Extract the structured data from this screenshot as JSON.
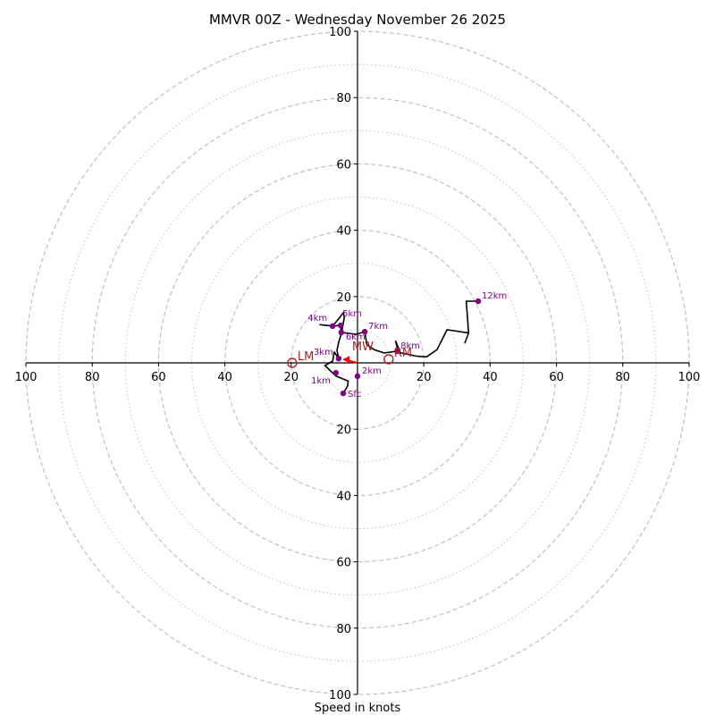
{
  "chart_data": {
    "type": "hodograph",
    "title": "MMVR 00Z - Wednesday November 26 2025",
    "xlabel": "Speed in knots",
    "rmax": 100,
    "ring_major": [
      20,
      40,
      60,
      80,
      100
    ],
    "ring_minor": [
      10,
      30,
      50,
      70,
      90
    ],
    "tick_labels": {
      "x_left": [
        "100",
        "80",
        "60",
        "40",
        "20"
      ],
      "x_right": [
        "20",
        "40",
        "60",
        "80",
        "100"
      ],
      "y_top": [
        "20",
        "40",
        "60",
        "80",
        "100"
      ],
      "y_bottom": [
        "20",
        "40",
        "60",
        "80",
        "100"
      ]
    },
    "trace_color": "#000000",
    "trace": [
      [
        -4.3,
        -9.2
      ],
      [
        -3.0,
        -7.0
      ],
      [
        -2.8,
        -5.5
      ],
      [
        -6.5,
        -4.0
      ],
      [
        -9.8,
        -0.8
      ],
      [
        -7.5,
        0.5
      ],
      [
        -7.0,
        3.3
      ],
      [
        -5.7,
        1.3
      ],
      [
        -6.2,
        3.8
      ],
      [
        -5.6,
        6.5
      ],
      [
        -4.8,
        9.0
      ],
      [
        -4.0,
        13.7
      ],
      [
        -4.2,
        15.2
      ],
      [
        -5.5,
        13.5
      ],
      [
        -7.5,
        11.1
      ],
      [
        -11.3,
        11.5
      ],
      [
        -7.5,
        11.1
      ],
      [
        -5.1,
        11.3
      ],
      [
        -4.9,
        9.2
      ],
      [
        -0.5,
        8.6
      ],
      [
        2.2,
        9.4
      ],
      [
        2.8,
        5.5
      ],
      [
        5.0,
        4.0
      ],
      [
        8.0,
        3.0
      ],
      [
        11.9,
        3.5
      ],
      [
        12.0,
        4.6
      ],
      [
        11.5,
        6.5
      ],
      [
        13.0,
        3.0
      ],
      [
        18.0,
        2.0
      ],
      [
        20.8,
        1.8
      ],
      [
        24.0,
        4.0
      ],
      [
        27.0,
        10.0
      ],
      [
        33.5,
        9.0
      ],
      [
        32.4,
        6.0
      ],
      [
        33.5,
        9.0
      ],
      [
        32.8,
        18.6
      ],
      [
        36.4,
        18.6
      ]
    ],
    "height_points": [
      {
        "label": "Sfc",
        "u": -4.3,
        "v": -9.2
      },
      {
        "label": "1km",
        "u": -6.5,
        "v": -3.0
      },
      {
        "label": "2km",
        "u": 0.0,
        "v": -4.0
      },
      {
        "label": "3km",
        "u": -5.7,
        "v": 1.3
      },
      {
        "label": "4km",
        "u": -7.5,
        "v": 11.1
      },
      {
        "label": "5km",
        "u": -5.1,
        "v": 11.3
      },
      {
        "label": "6km",
        "u": -4.9,
        "v": 9.2
      },
      {
        "label": "7km",
        "u": 2.2,
        "v": 9.4
      },
      {
        "label": "8km",
        "u": 11.9,
        "v": 3.5
      },
      {
        "label": "12km",
        "u": 36.4,
        "v": 18.6
      }
    ],
    "point_color": "#800080",
    "motion_points": [
      {
        "label": "RM",
        "u": 9.4,
        "v": 1.1
      },
      {
        "label": "LM",
        "u": -19.7,
        "v": 0.0
      },
      {
        "label": "MW",
        "u": -3.8,
        "v": 1.6
      }
    ],
    "motion_color": "#b22222",
    "shear_vector": {
      "from": [
        0.0,
        0.0
      ],
      "to": [
        -4.0,
        1.0
      ],
      "color": "#ff0000"
    },
    "grid_color": "#c0c0c0"
  }
}
